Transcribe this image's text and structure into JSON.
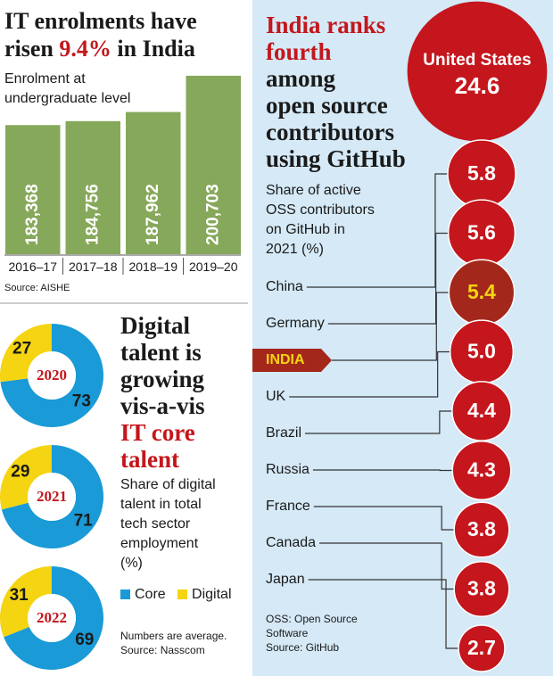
{
  "chart_data": [
    {
      "type": "bar",
      "title": [
        "IT enrolments have",
        "risen",
        "9.4%",
        "in India"
      ],
      "subtitle": [
        "Enrolment at",
        "undergraduate level"
      ],
      "categories": [
        "2016–17",
        "2017–18",
        "2018–19",
        "2019–20"
      ],
      "values": [
        183368,
        184756,
        187962,
        200703
      ],
      "value_labels": [
        "183,368",
        "184,756",
        "187,962",
        "200,703"
      ],
      "color": "#86a85a",
      "ylim": [
        138000,
        201000
      ],
      "source": "Source: AISHE"
    },
    {
      "type": "donut",
      "title": [
        "Digital",
        "talent is",
        "growing",
        "vis-a-vis",
        "IT core",
        "talent"
      ],
      "subtitle": [
        "Share of digital",
        "talent in total",
        "tech sector",
        "employment",
        "(%)"
      ],
      "categories": [
        "Core",
        "Digital"
      ],
      "colors": [
        "#1a9ad6",
        "#f5d411"
      ],
      "series": [
        {
          "name": "2020",
          "values": [
            73,
            27
          ]
        },
        {
          "name": "2021",
          "values": [
            71,
            29
          ]
        },
        {
          "name": "2022",
          "values": [
            69,
            31
          ]
        }
      ],
      "notes": [
        "Numbers are average.",
        "Source: Nasscom"
      ]
    },
    {
      "type": "bubble",
      "title": [
        "India ranks",
        "fourth",
        "among",
        "open source",
        "contributors",
        "using GitHub"
      ],
      "subtitle": [
        "Share of active",
        "OSS contributors",
        "on GitHub in",
        "2021 (%)"
      ],
      "categories": [
        "United States",
        "China",
        "Germany",
        "INDIA",
        "UK",
        "Brazil",
        "Russia",
        "France",
        "Canada",
        "Japan"
      ],
      "values": [
        24.6,
        5.8,
        5.6,
        5.4,
        5.0,
        4.4,
        4.3,
        3.8,
        3.8,
        2.7
      ],
      "value_labels": [
        "24.6",
        "5.8",
        "5.6",
        "5.4",
        "5.0",
        "4.4",
        "4.3",
        "3.8",
        "3.8",
        "2.7"
      ],
      "colors": [
        "#c4161c",
        "#c4161c",
        "#c4161c",
        "#a3281b",
        "#c4161c",
        "#c4161c",
        "#c4161c",
        "#c4161c",
        "#c4161c",
        "#c4161c"
      ],
      "label_colors": [
        "#ffffff",
        "#ffffff",
        "#ffffff",
        "#f5d411",
        "#ffffff",
        "#ffffff",
        "#ffffff",
        "#ffffff",
        "#ffffff",
        "#ffffff"
      ],
      "notes": [
        "OSS: Open Source",
        "Software",
        "Source: GitHub"
      ]
    }
  ]
}
